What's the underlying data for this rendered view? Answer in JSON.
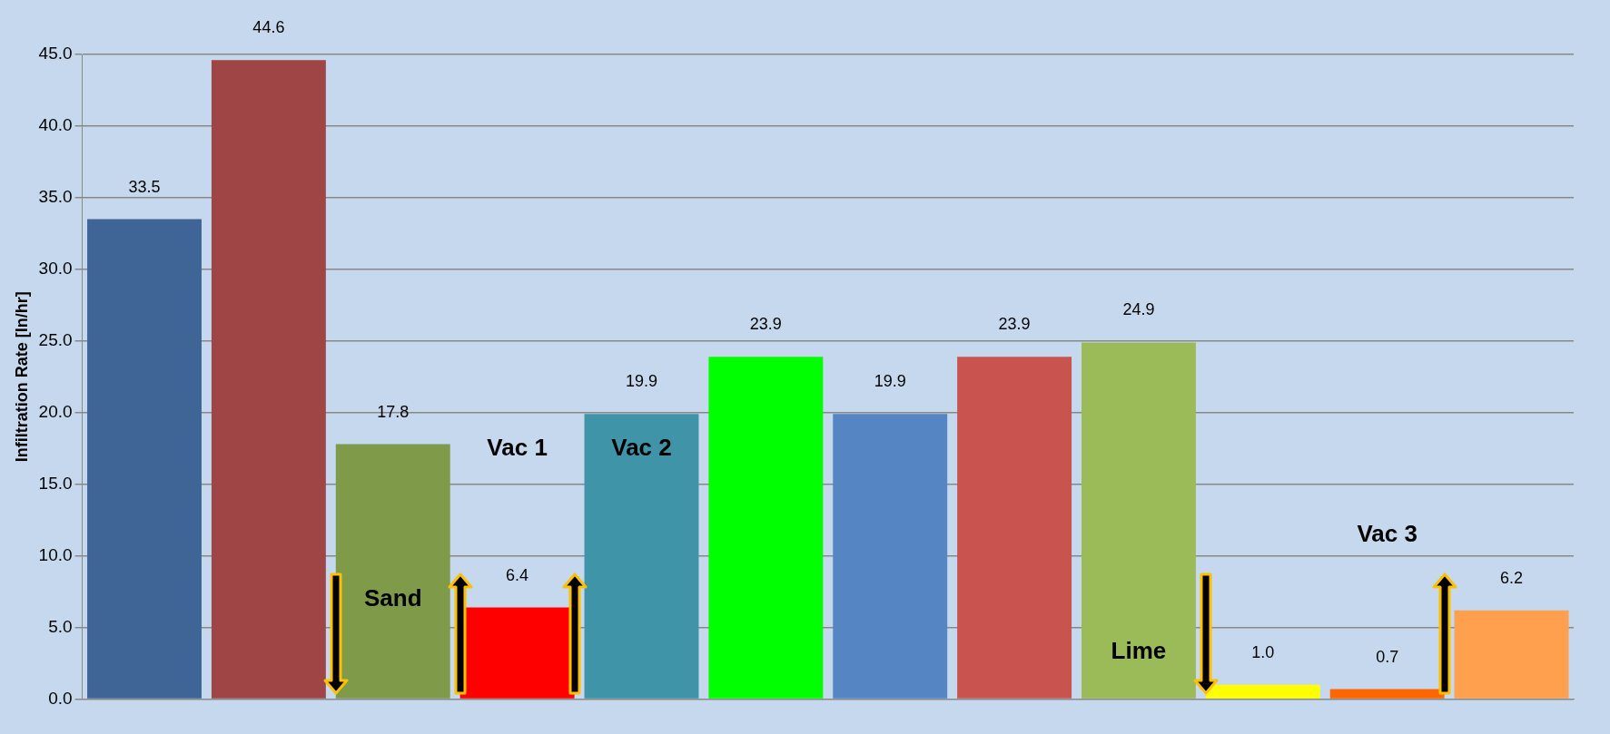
{
  "chart_data": {
    "type": "bar",
    "ylabel": "Infiltration Rate [In/hr]",
    "categories": [
      null,
      null,
      null,
      null,
      null,
      null,
      null,
      null,
      null,
      null,
      null,
      null
    ],
    "values": [
      33.5,
      44.6,
      17.8,
      6.4,
      19.9,
      23.9,
      19.9,
      23.9,
      24.9,
      1.0,
      0.7,
      6.2
    ],
    "colors": [
      "#3f6597",
      "#a04545",
      "#7f9a48",
      "#ff0000",
      "#4094a8",
      "#00ff00",
      "#5585c2",
      "#c9544f",
      "#9bbb59",
      "#ffff00",
      "#ff6600",
      "#ffa04f"
    ],
    "value_labels": [
      "33.5",
      "44.6",
      "17.8",
      "6.4",
      "19.9",
      "23.9",
      "19.9",
      "23.9",
      "24.9",
      "1.0",
      "0.7",
      "6.2"
    ],
    "ylim": [
      0,
      45
    ],
    "yticks": [
      {
        "value": 0,
        "label": "0.0"
      },
      {
        "value": 5,
        "label": "5.0"
      },
      {
        "value": 10,
        "label": "10.0"
      },
      {
        "value": 15,
        "label": "15.0"
      },
      {
        "value": 20,
        "label": "20.0"
      },
      {
        "value": 25,
        "label": "25.0"
      },
      {
        "value": 30,
        "label": "30.0"
      },
      {
        "value": 35,
        "label": "35.0"
      },
      {
        "value": 40,
        "label": "40.0"
      },
      {
        "value": 45,
        "label": "45.0"
      }
    ],
    "grid": "y",
    "legend": false,
    "annotations": [
      "Vac 1",
      "Vac 2",
      "Sand",
      "Lime",
      "Vac 3"
    ]
  }
}
